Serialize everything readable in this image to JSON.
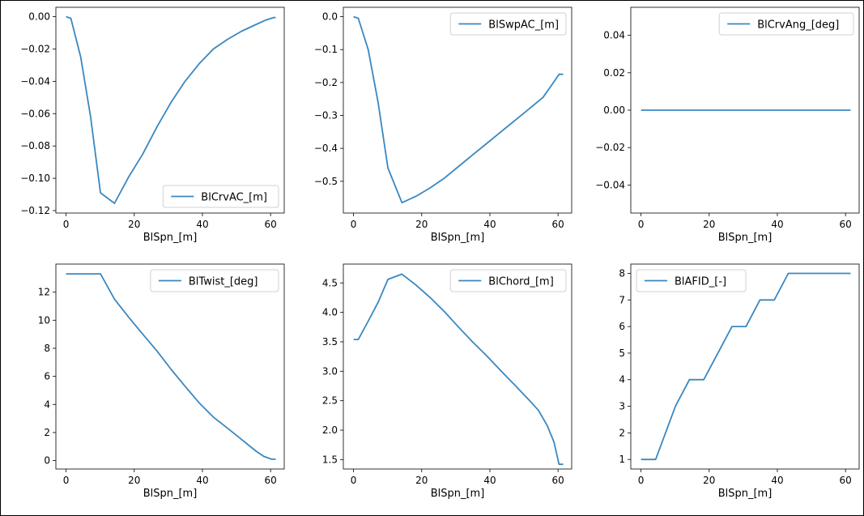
{
  "figure": {
    "line_color": "#3a87c0"
  },
  "chart_data": [
    {
      "type": "line",
      "xlabel": "BlSpn_[m]",
      "legend": "BlCrvAC_[m]",
      "legend_loc": "lower-right",
      "xlim": [
        -3,
        64
      ],
      "ylim": [
        -0.1215,
        0.0058
      ],
      "xticks": [
        0,
        20,
        40,
        60
      ],
      "yticks": [
        0.0,
        -0.02,
        -0.04,
        -0.06,
        -0.08,
        -0.1,
        -0.12
      ],
      "ytick_labels": [
        "0.00",
        "−0.02",
        "−0.04",
        "−0.06",
        "−0.08",
        "−0.10",
        "−0.12"
      ],
      "x": [
        0,
        1.4,
        4.3,
        7.2,
        10.1,
        14.2,
        18.4,
        22.5,
        26.7,
        30.8,
        34.9,
        39.1,
        43.2,
        47.4,
        51.5,
        55.6,
        58.7,
        61.0,
        61.5
      ],
      "y": [
        0,
        -0.001,
        -0.025,
        -0.062,
        -0.109,
        -0.1155,
        -0.099,
        -0.085,
        -0.068,
        -0.053,
        -0.04,
        -0.029,
        -0.02,
        -0.014,
        -0.009,
        -0.005,
        -0.002,
        -0.0005,
        -0.0005
      ]
    },
    {
      "type": "line",
      "xlabel": "BlSpn_[m]",
      "legend": "BlSwpAC_[m]",
      "legend_loc": "upper-right",
      "xlim": [
        -3,
        64
      ],
      "ylim": [
        -0.5965,
        0.0285
      ],
      "xticks": [
        0,
        20,
        40,
        60
      ],
      "yticks": [
        0.0,
        -0.1,
        -0.2,
        -0.3,
        -0.4,
        -0.5
      ],
      "ytick_labels": [
        "0.0",
        "−0.1",
        "−0.2",
        "−0.3",
        "−0.4",
        "−0.5"
      ],
      "x": [
        0,
        1.4,
        4.3,
        7.2,
        10.1,
        14.2,
        18.4,
        22.5,
        26.7,
        30.8,
        34.9,
        39.1,
        43.2,
        47.4,
        51.5,
        55.6,
        58.0,
        60.3,
        61.5
      ],
      "y": [
        0,
        -0.005,
        -0.1,
        -0.26,
        -0.46,
        -0.565,
        -0.545,
        -0.52,
        -0.49,
        -0.455,
        -0.42,
        -0.385,
        -0.35,
        -0.315,
        -0.28,
        -0.245,
        -0.21,
        -0.175,
        -0.175
      ]
    },
    {
      "type": "line",
      "xlabel": "BlSpn_[m]",
      "legend": "BlCrvAng_[deg]",
      "legend_loc": "upper-right",
      "xlim": [
        -3,
        64
      ],
      "ylim": [
        -0.055,
        0.055
      ],
      "xticks": [
        0,
        20,
        40,
        60
      ],
      "yticks": [
        0.04,
        0.02,
        0.0,
        -0.02,
        -0.04
      ],
      "ytick_labels": [
        "0.04",
        "0.02",
        "0.00",
        "−0.02",
        "−0.04"
      ],
      "x": [
        0,
        61.5
      ],
      "y": [
        0,
        0
      ]
    },
    {
      "type": "line",
      "xlabel": "BlSpn_[m]",
      "legend": "BlTwist_[deg]",
      "legend_loc": "upper-right",
      "xlim": [
        -3,
        64
      ],
      "ylim": [
        -0.6,
        14.0
      ],
      "xticks": [
        0,
        20,
        40,
        60
      ],
      "yticks": [
        0,
        2,
        4,
        6,
        8,
        10,
        12
      ],
      "ytick_labels": [
        "0",
        "2",
        "4",
        "6",
        "8",
        "10",
        "12"
      ],
      "x": [
        0,
        2.9,
        6.8,
        10.1,
        14.2,
        18.4,
        22.5,
        26.7,
        30.8,
        34.9,
        39.1,
        43.2,
        47.4,
        51.5,
        55.6,
        58.0,
        60.3,
        61.5
      ],
      "y": [
        13.3,
        13.3,
        13.3,
        13.3,
        11.5,
        10.2,
        9.0,
        7.8,
        6.5,
        5.3,
        4.1,
        3.1,
        2.3,
        1.5,
        0.7,
        0.3,
        0.1,
        0.1
      ]
    },
    {
      "type": "line",
      "xlabel": "BlSpn_[m]",
      "legend": "BlChord_[m]",
      "legend_loc": "upper-right",
      "xlim": [
        -3,
        64
      ],
      "ylim": [
        1.34,
        4.82
      ],
      "xticks": [
        0,
        20,
        40,
        60
      ],
      "yticks": [
        1.5,
        2.0,
        2.5,
        3.0,
        3.5,
        4.0,
        4.5
      ],
      "ytick_labels": [
        "1.5",
        "2.0",
        "2.5",
        "3.0",
        "3.5",
        "4.0",
        "4.5"
      ],
      "x": [
        0,
        1.4,
        4.3,
        7.2,
        10.1,
        14.2,
        18.4,
        22.5,
        26.7,
        30.8,
        34.9,
        39.1,
        43.2,
        47.4,
        51.5,
        54.2,
        56.8,
        58.8,
        60.3,
        61.5
      ],
      "y": [
        3.54,
        3.54,
        3.85,
        4.17,
        4.56,
        4.65,
        4.46,
        4.25,
        4.01,
        3.75,
        3.5,
        3.26,
        3.01,
        2.76,
        2.51,
        2.34,
        2.08,
        1.8,
        1.42,
        1.42
      ]
    },
    {
      "type": "line",
      "xlabel": "BlSpn_[m]",
      "legend": "BlAFID_[-]",
      "legend_loc": "upper-left",
      "xlim": [
        -3,
        64
      ],
      "ylim": [
        0.64,
        8.35
      ],
      "xticks": [
        0,
        20,
        40,
        60
      ],
      "yticks": [
        1,
        2,
        3,
        4,
        5,
        6,
        7,
        8
      ],
      "ytick_labels": [
        "1",
        "2",
        "3",
        "4",
        "5",
        "6",
        "7",
        "8"
      ],
      "x": [
        0,
        4.3,
        7.2,
        10.1,
        14.2,
        18.4,
        26.7,
        30.8,
        34.9,
        39.1,
        43.2,
        61.5
      ],
      "y": [
        1,
        1,
        2,
        3,
        4,
        4,
        6,
        6,
        7,
        7,
        8,
        8
      ]
    }
  ]
}
